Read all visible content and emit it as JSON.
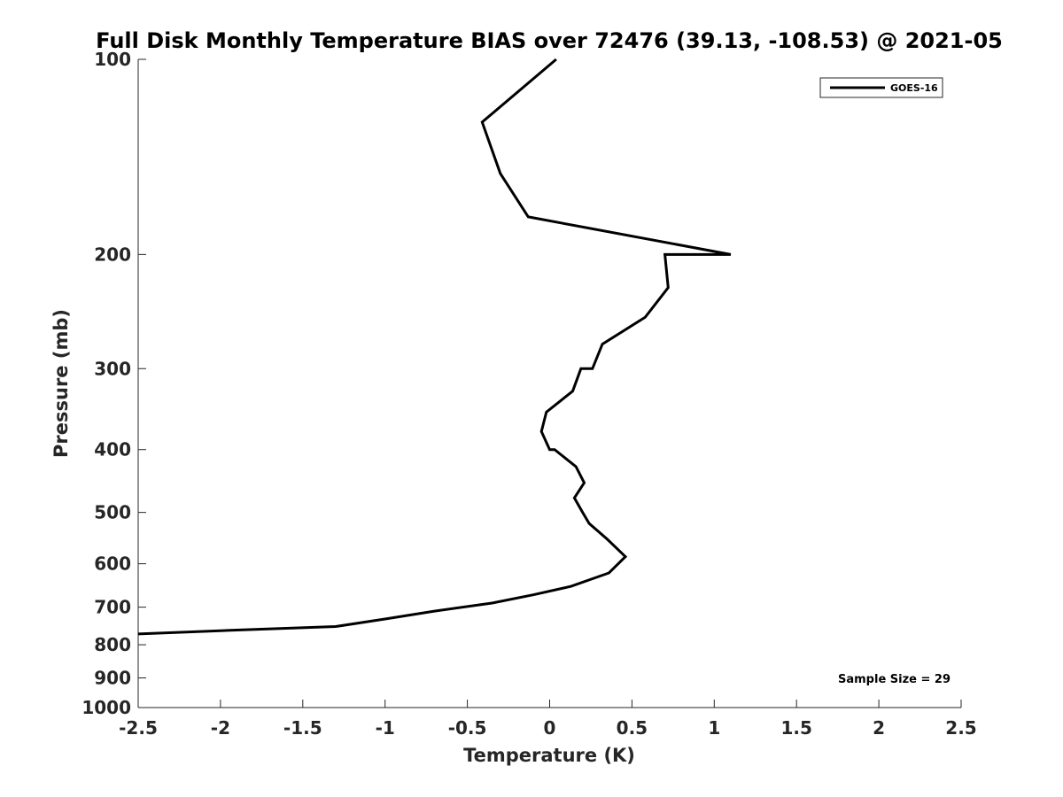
{
  "chart_data": {
    "type": "line",
    "title": "Full Disk Monthly Temperature BIAS over 72476 (39.13, -108.53) @ 2021-05",
    "xlabel": "Temperature (K)",
    "ylabel": "Pressure (mb)",
    "xlim": [
      -2.5,
      2.5
    ],
    "ylim": [
      100,
      1000
    ],
    "y_scale": "log",
    "y_reversed": true,
    "xticks": [
      -2.5,
      -2,
      -1.5,
      -1,
      -0.5,
      0,
      0.5,
      1,
      1.5,
      2,
      2.5
    ],
    "xtick_labels": [
      "-2.5",
      "-2",
      "-1.5",
      "-1",
      "-0.5",
      "0",
      "0.5",
      "1",
      "1.5",
      "2",
      "2.5"
    ],
    "yticks": [
      100,
      200,
      300,
      400,
      500,
      600,
      700,
      800,
      900,
      1000
    ],
    "ytick_labels": [
      "100",
      "200",
      "300",
      "400",
      "500",
      "600",
      "700",
      "800",
      "900",
      "1000"
    ],
    "grid": false,
    "legend_position": "top-right",
    "series": [
      {
        "name": "GOES-16",
        "color": "#000000",
        "points": [
          [
            0.04,
            100
          ],
          [
            -0.41,
            125
          ],
          [
            -0.3,
            150
          ],
          [
            -0.13,
            175
          ],
          [
            1.1,
            200
          ],
          [
            0.7,
            200
          ],
          [
            0.72,
            225
          ],
          [
            0.58,
            250
          ],
          [
            0.32,
            275
          ],
          [
            0.26,
            300
          ],
          [
            0.19,
            300
          ],
          [
            0.14,
            325
          ],
          [
            -0.02,
            350
          ],
          [
            -0.05,
            375
          ],
          [
            0.0,
            400
          ],
          [
            0.03,
            400
          ],
          [
            0.16,
            425
          ],
          [
            0.21,
            450
          ],
          [
            0.15,
            475
          ],
          [
            0.2,
            500
          ],
          [
            0.24,
            520
          ],
          [
            0.35,
            550
          ],
          [
            0.46,
            585
          ],
          [
            0.36,
            620
          ],
          [
            0.13,
            650
          ],
          [
            -0.1,
            670
          ],
          [
            -0.35,
            690
          ],
          [
            -0.7,
            710
          ],
          [
            -1.0,
            730
          ],
          [
            -1.3,
            750
          ],
          [
            -1.94,
            760
          ],
          [
            -2.5,
            770
          ]
        ]
      }
    ],
    "annotations": [
      "Sample Size = 29"
    ]
  }
}
